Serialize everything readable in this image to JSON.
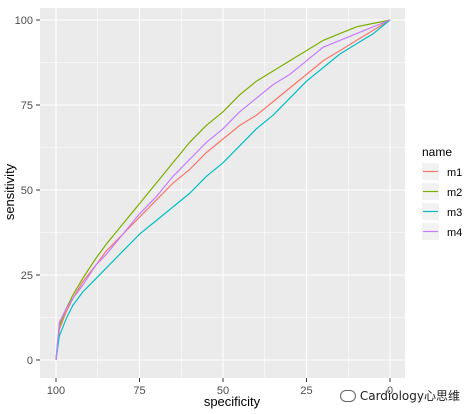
{
  "chart_data": {
    "type": "line",
    "title": "",
    "xlabel": "specificity",
    "ylabel": "sensitivity",
    "xlim": [
      100,
      0
    ],
    "ylim": [
      0,
      100
    ],
    "x_ticks": [
      100,
      75,
      50,
      25,
      0
    ],
    "y_ticks": [
      0,
      25,
      50,
      75,
      100
    ],
    "grid": true,
    "legend": {
      "title": "name",
      "placement": "right"
    },
    "series": [
      {
        "name": "m1",
        "color": "#F8766D",
        "points": [
          [
            100,
            0
          ],
          [
            99,
            9
          ],
          [
            97,
            14
          ],
          [
            95,
            18
          ],
          [
            92,
            23
          ],
          [
            88,
            28
          ],
          [
            85,
            32
          ],
          [
            80,
            37
          ],
          [
            75,
            42
          ],
          [
            70,
            47
          ],
          [
            65,
            52
          ],
          [
            60,
            56
          ],
          [
            55,
            61
          ],
          [
            50,
            65
          ],
          [
            45,
            69
          ],
          [
            40,
            72
          ],
          [
            35,
            76
          ],
          [
            30,
            80
          ],
          [
            25,
            84
          ],
          [
            20,
            88
          ],
          [
            15,
            91
          ],
          [
            10,
            94
          ],
          [
            5,
            97
          ],
          [
            0,
            100
          ]
        ]
      },
      {
        "name": "m2",
        "color": "#7CAE00",
        "points": [
          [
            100,
            0
          ],
          [
            99,
            10
          ],
          [
            97,
            15
          ],
          [
            95,
            19
          ],
          [
            92,
            24
          ],
          [
            88,
            30
          ],
          [
            85,
            34
          ],
          [
            80,
            40
          ],
          [
            75,
            46
          ],
          [
            70,
            52
          ],
          [
            65,
            58
          ],
          [
            60,
            64
          ],
          [
            55,
            69
          ],
          [
            50,
            73
          ],
          [
            45,
            78
          ],
          [
            40,
            82
          ],
          [
            35,
            85
          ],
          [
            30,
            88
          ],
          [
            25,
            91
          ],
          [
            20,
            94
          ],
          [
            15,
            96
          ],
          [
            10,
            98
          ],
          [
            5,
            99
          ],
          [
            0,
            100
          ]
        ]
      },
      {
        "name": "m3",
        "color": "#00BFC4",
        "points": [
          [
            100,
            0
          ],
          [
            99,
            7
          ],
          [
            97,
            12
          ],
          [
            95,
            16
          ],
          [
            92,
            20
          ],
          [
            88,
            24
          ],
          [
            85,
            27
          ],
          [
            80,
            32
          ],
          [
            75,
            37
          ],
          [
            70,
            41
          ],
          [
            65,
            45
          ],
          [
            60,
            49
          ],
          [
            55,
            54
          ],
          [
            50,
            58
          ],
          [
            45,
            63
          ],
          [
            40,
            68
          ],
          [
            35,
            72
          ],
          [
            30,
            77
          ],
          [
            25,
            82
          ],
          [
            20,
            86
          ],
          [
            15,
            90
          ],
          [
            10,
            93
          ],
          [
            5,
            96
          ],
          [
            0,
            100
          ]
        ]
      },
      {
        "name": "m4",
        "color": "#C77CFF",
        "points": [
          [
            100,
            0
          ],
          [
            99,
            11
          ],
          [
            97,
            15
          ],
          [
            95,
            18
          ],
          [
            92,
            22
          ],
          [
            88,
            28
          ],
          [
            85,
            31
          ],
          [
            80,
            37
          ],
          [
            75,
            43
          ],
          [
            70,
            48
          ],
          [
            65,
            54
          ],
          [
            60,
            59
          ],
          [
            55,
            64
          ],
          [
            50,
            68
          ],
          [
            45,
            73
          ],
          [
            40,
            77
          ],
          [
            35,
            81
          ],
          [
            30,
            84
          ],
          [
            25,
            88
          ],
          [
            20,
            92
          ],
          [
            15,
            94
          ],
          [
            10,
            96
          ],
          [
            5,
            98
          ],
          [
            0,
            100
          ]
        ]
      }
    ]
  },
  "watermark": "Cardiology心思维"
}
